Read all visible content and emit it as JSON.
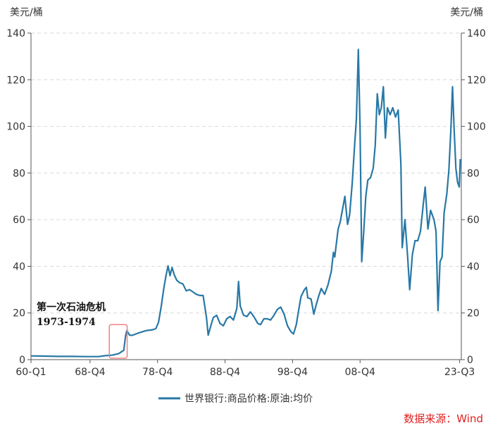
{
  "chart_data": {
    "type": "line",
    "title": "",
    "left_unit": "美元/桶",
    "right_unit": "美元/桶",
    "ylim": [
      0,
      140
    ],
    "y_ticks": [
      0,
      20,
      40,
      60,
      80,
      100,
      120,
      140
    ],
    "x_range": [
      1960.0,
      2023.75
    ],
    "x_ticks": [
      {
        "label": "60-Q1",
        "x": 1960.0
      },
      {
        "label": "68-Q4",
        "x": 1968.75
      },
      {
        "label": "78-Q4",
        "x": 1978.75
      },
      {
        "label": "88-Q4",
        "x": 1988.75
      },
      {
        "label": "98-Q4",
        "x": 1998.75
      },
      {
        "label": "08-Q4",
        "x": 2008.75
      },
      {
        "label": "23-Q3",
        "x": 2023.5
      }
    ],
    "grid": "horizontal-dashed",
    "legend_position": "bottom",
    "series": [
      {
        "name": "世界银行:商品价格:原油:均价",
        "color": "#2878a6",
        "points": [
          [
            1960.0,
            1.6
          ],
          [
            1962.0,
            1.5
          ],
          [
            1964.0,
            1.4
          ],
          [
            1966.0,
            1.4
          ],
          [
            1968.0,
            1.3
          ],
          [
            1970.0,
            1.3
          ],
          [
            1971.0,
            1.7
          ],
          [
            1972.0,
            1.9
          ],
          [
            1973.0,
            2.6
          ],
          [
            1973.75,
            4.0
          ],
          [
            1974.0,
            10.0
          ],
          [
            1974.2,
            12.5
          ],
          [
            1974.6,
            10.5
          ],
          [
            1975.0,
            10.4
          ],
          [
            1976.0,
            11.5
          ],
          [
            1977.0,
            12.4
          ],
          [
            1978.0,
            12.8
          ],
          [
            1978.5,
            13.3
          ],
          [
            1978.9,
            16.0
          ],
          [
            1979.3,
            23.0
          ],
          [
            1979.7,
            31.0
          ],
          [
            1980.0,
            36.0
          ],
          [
            1980.3,
            40.2
          ],
          [
            1980.6,
            36.0
          ],
          [
            1980.9,
            39.5
          ],
          [
            1981.2,
            36.5
          ],
          [
            1981.6,
            34.0
          ],
          [
            1982.0,
            33.0
          ],
          [
            1982.5,
            32.5
          ],
          [
            1983.0,
            29.5
          ],
          [
            1983.5,
            30.0
          ],
          [
            1984.0,
            29.0
          ],
          [
            1984.5,
            28.0
          ],
          [
            1985.0,
            27.5
          ],
          [
            1985.5,
            27.5
          ],
          [
            1986.0,
            18.0
          ],
          [
            1986.25,
            10.5
          ],
          [
            1986.6,
            14.0
          ],
          [
            1987.0,
            18.0
          ],
          [
            1987.5,
            19.0
          ],
          [
            1988.0,
            15.5
          ],
          [
            1988.5,
            14.5
          ],
          [
            1989.0,
            17.5
          ],
          [
            1989.5,
            18.5
          ],
          [
            1990.0,
            17.0
          ],
          [
            1990.5,
            22.0
          ],
          [
            1990.75,
            33.5
          ],
          [
            1991.0,
            23.0
          ],
          [
            1991.5,
            19.0
          ],
          [
            1992.0,
            18.5
          ],
          [
            1992.5,
            20.5
          ],
          [
            1993.0,
            18.5
          ],
          [
            1993.6,
            15.5
          ],
          [
            1994.0,
            15.0
          ],
          [
            1994.5,
            17.5
          ],
          [
            1995.0,
            17.5
          ],
          [
            1995.5,
            17.0
          ],
          [
            1996.0,
            19.0
          ],
          [
            1996.5,
            21.5
          ],
          [
            1997.0,
            22.5
          ],
          [
            1997.5,
            19.5
          ],
          [
            1998.0,
            14.5
          ],
          [
            1998.5,
            12.0
          ],
          [
            1998.9,
            11.0
          ],
          [
            1999.3,
            15.0
          ],
          [
            1999.7,
            22.0
          ],
          [
            2000.0,
            27.0
          ],
          [
            2000.5,
            30.0
          ],
          [
            2000.8,
            31.0
          ],
          [
            2001.0,
            26.5
          ],
          [
            2001.5,
            26.0
          ],
          [
            2001.9,
            19.5
          ],
          [
            2002.2,
            23.0
          ],
          [
            2002.6,
            27.0
          ],
          [
            2003.0,
            30.5
          ],
          [
            2003.5,
            28.0
          ],
          [
            2004.0,
            32.0
          ],
          [
            2004.5,
            38.0
          ],
          [
            2004.8,
            46.0
          ],
          [
            2005.0,
            44.0
          ],
          [
            2005.5,
            56.0
          ],
          [
            2005.8,
            59.0
          ],
          [
            2006.0,
            62.0
          ],
          [
            2006.5,
            70.0
          ],
          [
            2006.9,
            58.0
          ],
          [
            2007.2,
            62.0
          ],
          [
            2007.6,
            76.0
          ],
          [
            2007.9,
            90.0
          ],
          [
            2008.2,
            103.0
          ],
          [
            2008.5,
            133.0
          ],
          [
            2008.75,
            100.0
          ],
          [
            2009.0,
            42.0
          ],
          [
            2009.3,
            55.0
          ],
          [
            2009.6,
            70.0
          ],
          [
            2009.9,
            77.0
          ],
          [
            2010.3,
            78.0
          ],
          [
            2010.7,
            82.0
          ],
          [
            2011.0,
            92.0
          ],
          [
            2011.3,
            114.0
          ],
          [
            2011.6,
            105.0
          ],
          [
            2011.9,
            108.0
          ],
          [
            2012.2,
            117.0
          ],
          [
            2012.5,
            95.0
          ],
          [
            2012.8,
            108.0
          ],
          [
            2013.2,
            105.0
          ],
          [
            2013.6,
            108.0
          ],
          [
            2014.0,
            104.0
          ],
          [
            2014.4,
            107.0
          ],
          [
            2014.8,
            84.0
          ],
          [
            2015.0,
            48.0
          ],
          [
            2015.4,
            60.0
          ],
          [
            2015.8,
            44.0
          ],
          [
            2016.1,
            30.0
          ],
          [
            2016.5,
            45.0
          ],
          [
            2016.9,
            51.0
          ],
          [
            2017.3,
            51.0
          ],
          [
            2017.7,
            55.0
          ],
          [
            2018.1,
            66.0
          ],
          [
            2018.4,
            74.0
          ],
          [
            2018.8,
            56.0
          ],
          [
            2019.2,
            64.0
          ],
          [
            2019.7,
            60.0
          ],
          [
            2020.0,
            55.0
          ],
          [
            2020.3,
            21.0
          ],
          [
            2020.6,
            42.0
          ],
          [
            2020.9,
            44.0
          ],
          [
            2021.2,
            63.0
          ],
          [
            2021.6,
            71.0
          ],
          [
            2021.9,
            81.0
          ],
          [
            2022.2,
            98.0
          ],
          [
            2022.45,
            117.0
          ],
          [
            2022.7,
            98.0
          ],
          [
            2022.95,
            82.0
          ],
          [
            2023.2,
            76.0
          ],
          [
            2023.45,
            74.0
          ],
          [
            2023.6,
            86.0
          ]
        ]
      }
    ],
    "annotations": [
      {
        "line1": "第一次石油危机",
        "line2": "1973-1974",
        "x_from": 1971.6,
        "x_to": 1974.25,
        "y_from": 0,
        "y_to": 15
      }
    ]
  },
  "source": "数据来源：Wind"
}
